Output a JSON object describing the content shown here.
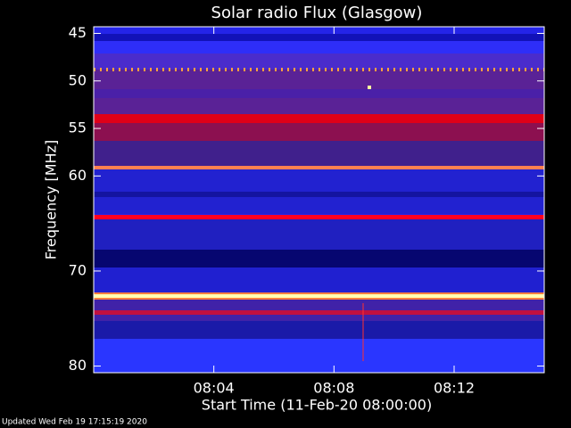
{
  "chart_data": {
    "type": "spectrogram",
    "title": "Solar radio Flux (Glasgow)",
    "x_label": "Start Time (11-Feb-20 08:00:00)",
    "y_label": "Frequency [MHz]",
    "footer": "Updated Wed Feb 19 17:15:19 2020",
    "xlim": [
      0,
      15
    ],
    "xticks": [
      {
        "value": 4,
        "label": "08:04"
      },
      {
        "value": 8,
        "label": "08:08"
      },
      {
        "value": 12,
        "label": "08:12"
      }
    ],
    "ylim": [
      80.7,
      44.3
    ],
    "yticks": [
      45,
      50,
      55,
      60,
      70,
      80
    ]
  }
}
